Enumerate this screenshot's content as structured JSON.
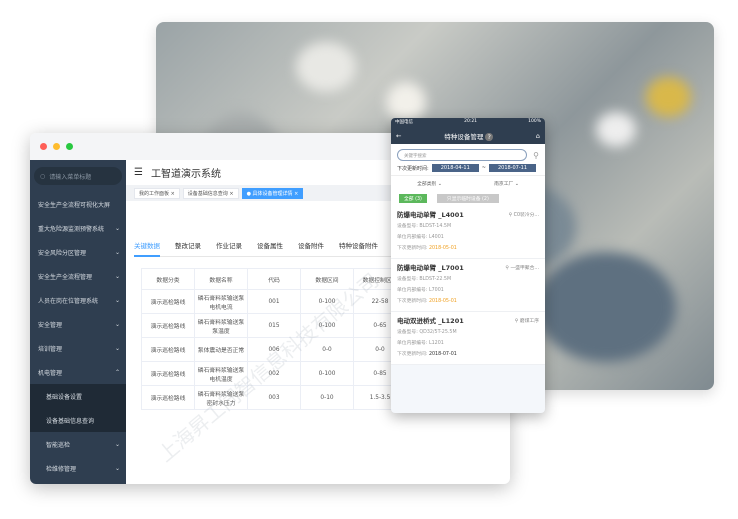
{
  "desktop": {
    "search_placeholder": "请输入菜单标题",
    "title": "工智道演示系统",
    "menu": [
      {
        "label": "安全生产全流程可视化大屏"
      },
      {
        "label": "重大危险源监测预警系统"
      },
      {
        "label": "安全风险分区管理"
      },
      {
        "label": "安全生产全流程管理"
      },
      {
        "label": "人员在岗在位管理系统"
      },
      {
        "label": "安全管理"
      },
      {
        "label": "培训管理"
      },
      {
        "label": "机电管理"
      },
      {
        "label": "基础设备设置"
      },
      {
        "label": "设备基础信息查询"
      },
      {
        "label": "智能巡检"
      },
      {
        "label": "检维修管理"
      }
    ],
    "tags": [
      "我的工作面板",
      "设备基础信息查询",
      "具体设备管理详情"
    ],
    "tabs": [
      "关键数据",
      "整改记录",
      "作业记录",
      "设备属性",
      "设备附件",
      "特种设备附件"
    ],
    "table": {
      "headers": [
        "数据分类",
        "数据名称",
        "代码",
        "数据区间",
        "数据控制区间"
      ],
      "rows": [
        [
          "演示巡检路线",
          "磷石膏料浆输送泵电机电流",
          "001",
          "0-100",
          "22-58"
        ],
        [
          "演示巡检路线",
          "磷石膏料浆输送泵泵温度",
          "015",
          "0-100",
          "0-65"
        ],
        [
          "演示巡检路线",
          "泵体震动是否正常",
          "006",
          "0-0",
          "0-0"
        ],
        [
          "演示巡检路线",
          "磷石膏料浆输送泵电机温度",
          "002",
          "0-100",
          "0-85"
        ],
        [
          "演示巡检路线",
          "磷石膏料浆输送泵密封水压力",
          "003",
          "0-10",
          "1.5-3.5"
        ]
      ]
    },
    "watermark": "上海昇工同智信息科技有限公司"
  },
  "phone": {
    "carrier": "中国电信",
    "time": "20:21",
    "battery": "100%",
    "title": "特种设备管理",
    "search_placeholder": "关键字搜索",
    "date_label": "下次更新时间:",
    "date_from": "2018-04-11",
    "date_sep": "~",
    "date_to": "2018-07-11",
    "filter_type": "全部类别",
    "filter_factory": "南京工厂",
    "btn_all": "全部 (3)",
    "btn_temp": "只显示临时设备 (2)",
    "items": [
      {
        "name": "防爆电动单臂 _L4001",
        "loc": "C0装冷分...",
        "model_label": "设备型号:",
        "model": "BLDST-14.5M",
        "code_label": "单位内部编号:",
        "code": "L4001",
        "next_label": "下次更新时间:",
        "next": "2018-05-01"
      },
      {
        "name": "防爆电动单臂 _L7001",
        "loc": "一盛甲聚合...",
        "model_label": "设备型号:",
        "model": "BLDST-22.5M",
        "code_label": "单位内部编号:",
        "code": "L7001",
        "next_label": "下次更新时间:",
        "next": "2018-05-01"
      },
      {
        "name": "电动双进桥式 _L1201",
        "loc": "磨煤工序",
        "model_label": "设备型号:",
        "model": "QD32/5T-25.5M",
        "code_label": "单位内部编号:",
        "code": "L1201",
        "next_label": "下次更新时间:",
        "next": "2018-07-01"
      }
    ]
  },
  "colors": {
    "sidebar": "#2f3e50",
    "accent": "#409eff",
    "green": "#5cb85c",
    "orange": "#f0a020"
  }
}
